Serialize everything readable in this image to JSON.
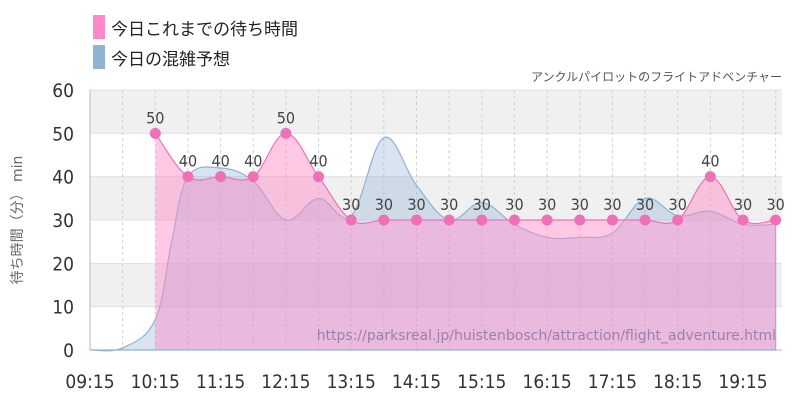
{
  "legend": {
    "items": [
      {
        "label": "今日これまでの待ち時間",
        "color": "#ff88c8"
      },
      {
        "label": "今日の混雑予想",
        "color": "#8fb3d4"
      }
    ]
  },
  "chart_data": {
    "type": "area",
    "subtitle": "アンクルパイロットのフライトアドベンチャー",
    "watermark": "https://parksreal.jp/huistenbosch/attraction/flight_adventure.html",
    "ylabel": "待ち時間（分） min",
    "ylim": [
      0,
      60
    ],
    "yticks": [
      "0",
      "10",
      "20",
      "30",
      "40",
      "50",
      "60"
    ],
    "xticks": [
      "09:15",
      "10:15",
      "11:15",
      "12:15",
      "13:15",
      "14:15",
      "15:15",
      "16:15",
      "17:15",
      "18:15",
      "19:15"
    ],
    "grid": true,
    "series": [
      {
        "name": "今日これまでの待ち時間",
        "color": "#ff88c8",
        "points": [
          {
            "x": "10:15",
            "y": 50,
            "label": "50"
          },
          {
            "x": "10:45",
            "y": 40,
            "label": "40"
          },
          {
            "x": "11:15",
            "y": 40,
            "label": "40"
          },
          {
            "x": "11:45",
            "y": 40,
            "label": "40"
          },
          {
            "x": "12:15",
            "y": 50,
            "label": "50"
          },
          {
            "x": "12:45",
            "y": 40,
            "label": "40"
          },
          {
            "x": "13:15",
            "y": 30,
            "label": "30"
          },
          {
            "x": "13:45",
            "y": 30,
            "label": "30"
          },
          {
            "x": "14:15",
            "y": 30,
            "label": "30"
          },
          {
            "x": "14:45",
            "y": 30,
            "label": "30"
          },
          {
            "x": "15:15",
            "y": 30,
            "label": "30"
          },
          {
            "x": "15:45",
            "y": 30,
            "label": "30"
          },
          {
            "x": "16:15",
            "y": 30,
            "label": "30"
          },
          {
            "x": "16:45",
            "y": 30,
            "label": "30"
          },
          {
            "x": "17:15",
            "y": 30,
            "label": "30"
          },
          {
            "x": "17:45",
            "y": 30,
            "label": "30"
          },
          {
            "x": "18:15",
            "y": 30,
            "label": "30"
          },
          {
            "x": "18:45",
            "y": 40,
            "label": "40"
          },
          {
            "x": "19:15",
            "y": 30,
            "label": "30"
          },
          {
            "x": "19:45",
            "y": 30,
            "label": "30"
          }
        ]
      },
      {
        "name": "今日の混雑予想",
        "color": "#8fb3d4",
        "points": [
          {
            "x": "09:15",
            "y": 0
          },
          {
            "x": "09:45",
            "y": 0.5
          },
          {
            "x": "10:15",
            "y": 7
          },
          {
            "x": "10:30",
            "y": 25
          },
          {
            "x": "10:45",
            "y": 40
          },
          {
            "x": "11:15",
            "y": 42
          },
          {
            "x": "11:45",
            "y": 39
          },
          {
            "x": "12:15",
            "y": 30
          },
          {
            "x": "12:45",
            "y": 35
          },
          {
            "x": "13:15",
            "y": 31
          },
          {
            "x": "13:45",
            "y": 49
          },
          {
            "x": "14:15",
            "y": 38
          },
          {
            "x": "14:45",
            "y": 30
          },
          {
            "x": "15:15",
            "y": 34
          },
          {
            "x": "15:45",
            "y": 29
          },
          {
            "x": "16:15",
            "y": 26
          },
          {
            "x": "16:45",
            "y": 26
          },
          {
            "x": "17:15",
            "y": 27
          },
          {
            "x": "17:45",
            "y": 35
          },
          {
            "x": "18:15",
            "y": 31
          },
          {
            "x": "18:45",
            "y": 32
          },
          {
            "x": "19:15",
            "y": 29
          },
          {
            "x": "19:45",
            "y": 29
          }
        ]
      }
    ]
  }
}
